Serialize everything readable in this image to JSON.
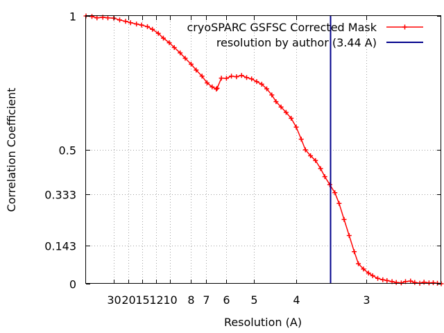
{
  "chart_data": {
    "type": "line",
    "title": "",
    "xlabel": "Resolution (A)",
    "ylabel": "Correlation Coefficient",
    "x_axis_unit": "1/A",
    "xlim": [
      0.0,
      0.4225
    ],
    "ylim": [
      0,
      1
    ],
    "grid": true,
    "legend_position": "top-right",
    "y_ticks": [
      {
        "value": 0,
        "label": "0"
      },
      {
        "value": 0.143,
        "label": "0.143"
      },
      {
        "value": 0.333,
        "label": "0.333"
      },
      {
        "value": 0.5,
        "label": "0.5"
      },
      {
        "value": 1,
        "label": "1"
      }
    ],
    "x_ticks": [
      {
        "value": 0.03333,
        "label": "30"
      },
      {
        "value": 0.05,
        "label": "20"
      },
      {
        "value": 0.06667,
        "label": "15"
      },
      {
        "value": 0.08333,
        "label": "12"
      },
      {
        "value": 0.1,
        "label": "10"
      },
      {
        "value": 0.125,
        "label": "8"
      },
      {
        "value": 0.14286,
        "label": "7"
      },
      {
        "value": 0.16667,
        "label": "6"
      },
      {
        "value": 0.2,
        "label": "5"
      },
      {
        "value": 0.25,
        "label": "4"
      },
      {
        "value": 0.33333,
        "label": "3"
      }
    ],
    "series": [
      {
        "name": "cryoSPARC GSFSC Corrected Mask",
        "color": "#ff0000",
        "marker": "plus",
        "x": [
          0.0,
          0.007,
          0.013,
          0.02,
          0.026,
          0.033,
          0.04,
          0.047,
          0.053,
          0.06,
          0.066,
          0.073,
          0.079,
          0.086,
          0.092,
          0.099,
          0.105,
          0.112,
          0.118,
          0.125,
          0.131,
          0.138,
          0.144,
          0.15,
          0.155,
          0.156,
          0.161,
          0.167,
          0.173,
          0.179,
          0.185,
          0.191,
          0.197,
          0.203,
          0.209,
          0.215,
          0.221,
          0.226,
          0.232,
          0.238,
          0.244,
          0.25,
          0.256,
          0.261,
          0.267,
          0.273,
          0.279,
          0.284,
          0.29,
          0.296,
          0.301,
          0.307,
          0.313,
          0.319,
          0.324,
          0.33,
          0.336,
          0.341,
          0.347,
          0.353,
          0.358,
          0.364,
          0.369,
          0.375,
          0.38,
          0.386,
          0.391,
          0.397,
          0.402,
          0.408,
          0.413,
          0.418,
          0.4225
        ],
        "y": [
          1.0,
          0.998,
          0.993,
          0.995,
          0.993,
          0.992,
          0.985,
          0.98,
          0.975,
          0.97,
          0.966,
          0.96,
          0.95,
          0.935,
          0.917,
          0.9,
          0.882,
          0.862,
          0.842,
          0.82,
          0.798,
          0.775,
          0.75,
          0.735,
          0.727,
          0.73,
          0.768,
          0.767,
          0.775,
          0.773,
          0.778,
          0.77,
          0.765,
          0.755,
          0.745,
          0.728,
          0.705,
          0.68,
          0.66,
          0.64,
          0.618,
          0.585,
          0.54,
          0.5,
          0.478,
          0.46,
          0.43,
          0.4,
          0.37,
          0.34,
          0.3,
          0.24,
          0.18,
          0.12,
          0.075,
          0.055,
          0.04,
          0.03,
          0.02,
          0.015,
          0.012,
          0.008,
          0.005,
          0.003,
          0.008,
          0.01,
          0.005,
          0.002,
          0.006,
          0.003,
          0.004,
          0.002,
          0.0
        ]
      },
      {
        "name": "resolution by author (3.44 A)",
        "color": "#00008b",
        "marker": "none",
        "vertical_line_x": 0.2907
      }
    ]
  }
}
